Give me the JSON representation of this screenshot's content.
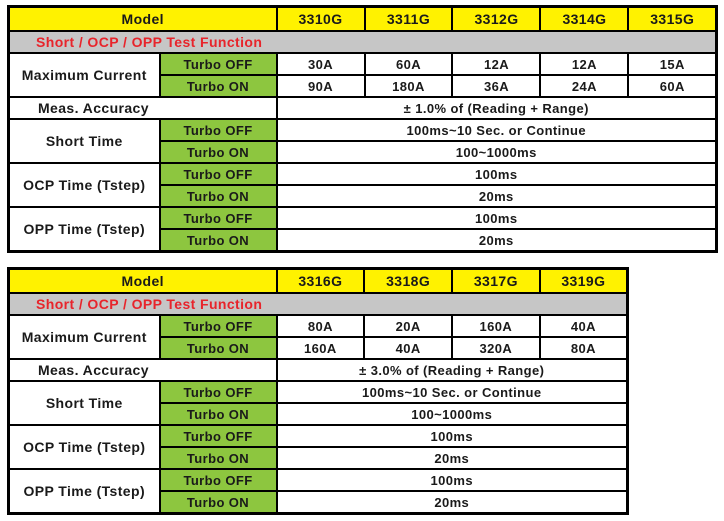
{
  "colors": {
    "header_yellow": "#FFF200",
    "section_gray": "#C6C6C6",
    "turbo_green": "#8DC63F",
    "section_text_red": "#E8242B",
    "border_black": "#000000",
    "text_black": "#1A1A1A",
    "page_background": "#FFFFFF"
  },
  "labels": {
    "model": "Model",
    "section_title": "Short / OCP / OPP Test Function",
    "maximum_current": "Maximum Current",
    "meas_accuracy": "Meas. Accuracy",
    "short_time": "Short Time",
    "ocp_time": "OCP Time (Tstep)",
    "opp_time": "OPP Time (Tstep)",
    "turbo_off": "Turbo OFF",
    "turbo_on": "Turbo ON"
  },
  "tables": [
    {
      "models": [
        "3310G",
        "3311G",
        "3312G",
        "3314G",
        "3315G"
      ],
      "max_current_turbo_off": [
        "30A",
        "60A",
        "12A",
        "12A",
        "15A"
      ],
      "max_current_turbo_on": [
        "90A",
        "180A",
        "36A",
        "24A",
        "60A"
      ],
      "meas_accuracy": "± 1.0% of (Reading + Range)",
      "short_time_turbo_off": "100ms~10 Sec. or Continue",
      "short_time_turbo_on": "100~1000ms",
      "ocp_time_turbo_off": "100ms",
      "ocp_time_turbo_on": "20ms",
      "opp_time_turbo_off": "100ms",
      "opp_time_turbo_on": "20ms"
    },
    {
      "models": [
        "3316G",
        "3318G",
        "3317G",
        "3319G"
      ],
      "max_current_turbo_off": [
        "80A",
        "20A",
        "160A",
        "40A"
      ],
      "max_current_turbo_on": [
        "160A",
        "40A",
        "320A",
        "80A"
      ],
      "meas_accuracy": "± 3.0% of (Reading + Range)",
      "short_time_turbo_off": "100ms~10 Sec. or Continue",
      "short_time_turbo_on": "100~1000ms",
      "ocp_time_turbo_off": "100ms",
      "ocp_time_turbo_on": "20ms",
      "opp_time_turbo_off": "100ms",
      "opp_time_turbo_on": "20ms"
    }
  ]
}
